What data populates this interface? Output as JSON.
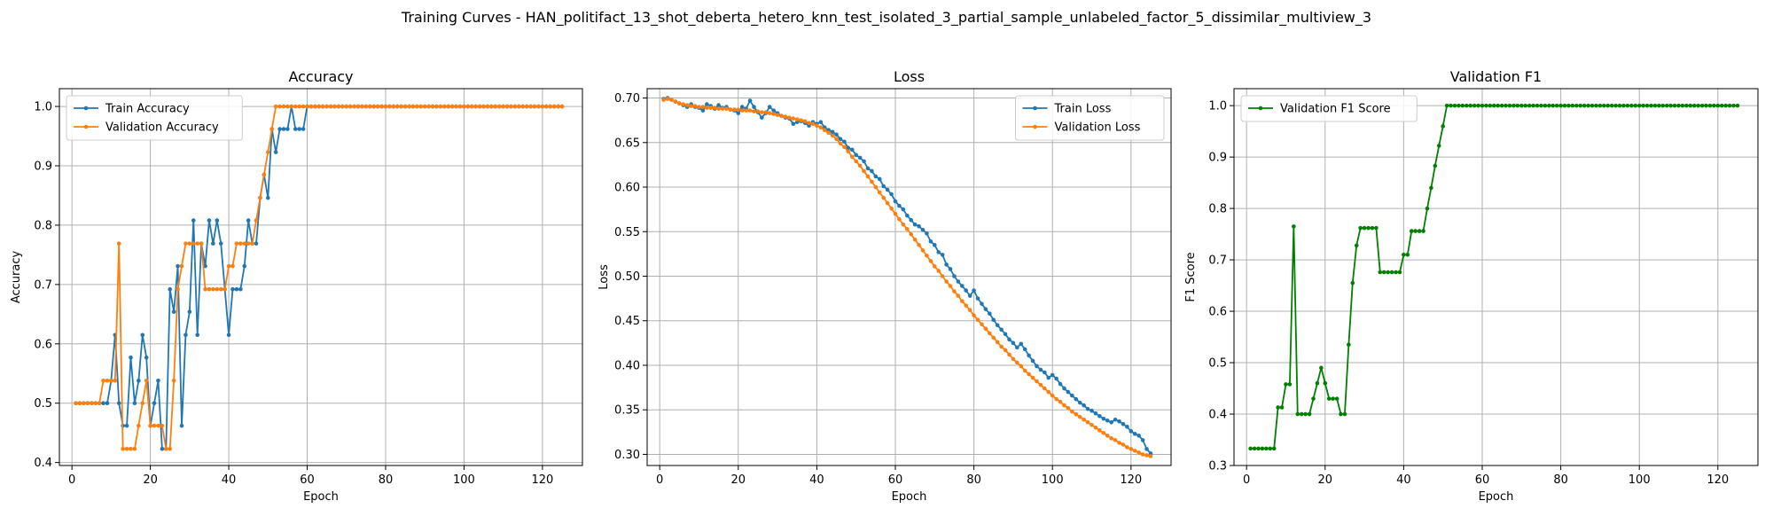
{
  "figure": {
    "title": "Training Curves - HAN_politifact_13_shot_deberta_hetero_knn_test_isolated_3_partial_sample_unlabeled_factor_5_dissimilar_multiview_3"
  },
  "colors": {
    "blue": "#1f77b4",
    "orange": "#ff7f0e",
    "green": "#008000",
    "grid": "#b0b0b0"
  },
  "chart_data": [
    {
      "type": "line",
      "title": "Accuracy",
      "xlabel": "Epoch",
      "ylabel": "Accuracy",
      "xlim": [
        -3.2,
        130.2
      ],
      "ylim": [
        0.395,
        1.03
      ],
      "xticks": [
        0,
        20,
        40,
        60,
        80,
        100,
        120
      ],
      "yticks": [
        0.4,
        0.5,
        0.6,
        0.7,
        0.8,
        0.9,
        1.0
      ],
      "grid": true,
      "legend": "upper-left",
      "series": [
        {
          "name": "Train Accuracy",
          "color": "#1f77b4",
          "y": [
            0.5,
            0.5,
            0.5,
            0.5,
            0.5,
            0.5,
            0.5,
            0.5,
            0.5,
            0.538,
            0.615,
            0.5,
            0.462,
            0.462,
            0.577,
            0.5,
            0.538,
            0.615,
            0.577,
            0.462,
            0.5,
            0.538,
            0.423,
            0.423,
            0.692,
            0.654,
            0.731,
            0.462,
            0.615,
            0.654,
            0.808,
            0.615,
            0.769,
            0.731,
            0.808,
            0.769,
            0.808,
            0.769,
            0.692,
            0.615,
            0.692,
            0.692,
            0.692,
            0.731,
            0.808,
            0.769,
            0.769,
            0.846,
            0.885,
            0.846,
            0.962,
            0.923,
            0.962,
            0.962,
            0.962,
            1.0,
            0.962,
            0.962,
            0.962,
            1.0,
            1.0,
            1.0,
            1.0,
            1.0,
            1.0,
            1.0,
            1.0,
            1.0,
            1.0,
            1.0,
            1.0,
            1.0,
            1.0,
            1.0,
            1.0,
            1.0,
            1.0,
            1.0,
            1.0,
            1.0,
            1.0,
            1.0,
            1.0,
            1.0,
            1.0,
            1.0,
            1.0,
            1.0,
            1.0,
            1.0,
            1.0,
            1.0,
            1.0,
            1.0,
            1.0,
            1.0,
            1.0,
            1.0,
            1.0,
            1.0,
            1.0,
            1.0,
            1.0,
            1.0,
            1.0,
            1.0,
            1.0,
            1.0,
            1.0,
            1.0,
            1.0,
            1.0,
            1.0,
            1.0,
            1.0,
            1.0,
            1.0,
            1.0,
            1.0,
            1.0,
            1.0,
            1.0,
            1.0,
            1.0,
            1.0
          ]
        },
        {
          "name": "Validation Accuracy",
          "color": "#ff7f0e",
          "y": [
            0.5,
            0.5,
            0.5,
            0.5,
            0.5,
            0.5,
            0.5,
            0.538,
            0.538,
            0.538,
            0.538,
            0.769,
            0.423,
            0.423,
            0.423,
            0.423,
            0.462,
            0.5,
            0.538,
            0.462,
            0.462,
            0.462,
            0.462,
            0.423,
            0.423,
            0.538,
            0.692,
            0.731,
            0.769,
            0.769,
            0.769,
            0.769,
            0.769,
            0.692,
            0.692,
            0.692,
            0.692,
            0.692,
            0.692,
            0.731,
            0.731,
            0.769,
            0.769,
            0.769,
            0.769,
            0.769,
            0.808,
            0.846,
            0.885,
            0.923,
            0.962,
            1.0,
            1.0,
            1.0,
            1.0,
            1.0,
            1.0,
            1.0,
            1.0,
            1.0,
            1.0,
            1.0,
            1.0,
            1.0,
            1.0,
            1.0,
            1.0,
            1.0,
            1.0,
            1.0,
            1.0,
            1.0,
            1.0,
            1.0,
            1.0,
            1.0,
            1.0,
            1.0,
            1.0,
            1.0,
            1.0,
            1.0,
            1.0,
            1.0,
            1.0,
            1.0,
            1.0,
            1.0,
            1.0,
            1.0,
            1.0,
            1.0,
            1.0,
            1.0,
            1.0,
            1.0,
            1.0,
            1.0,
            1.0,
            1.0,
            1.0,
            1.0,
            1.0,
            1.0,
            1.0,
            1.0,
            1.0,
            1.0,
            1.0,
            1.0,
            1.0,
            1.0,
            1.0,
            1.0,
            1.0,
            1.0,
            1.0,
            1.0,
            1.0,
            1.0,
            1.0,
            1.0,
            1.0,
            1.0,
            1.0
          ]
        }
      ]
    },
    {
      "type": "line",
      "title": "Loss",
      "xlabel": "Epoch",
      "ylabel": "Loss",
      "xlim": [
        -3.2,
        130.2
      ],
      "ylim": [
        0.2875,
        0.7105
      ],
      "xticks": [
        0,
        20,
        40,
        60,
        80,
        100,
        120
      ],
      "yticks": [
        0.3,
        0.35,
        0.4,
        0.45,
        0.5,
        0.55,
        0.6,
        0.65,
        0.7
      ],
      "ytick_labels": [
        "0.30",
        "0.35",
        "0.40",
        "0.45",
        "0.50",
        "0.55",
        "0.60",
        "0.65",
        "0.70"
      ],
      "grid": true,
      "legend": "upper-right",
      "series": [
        {
          "name": "Train Loss",
          "color": "#1f77b4",
          "y": [
            0.699,
            0.7,
            0.698,
            0.696,
            0.694,
            0.692,
            0.69,
            0.693,
            0.69,
            0.689,
            0.686,
            0.693,
            0.691,
            0.688,
            0.692,
            0.689,
            0.69,
            0.687,
            0.686,
            0.683,
            0.69,
            0.688,
            0.697,
            0.69,
            0.684,
            0.678,
            0.683,
            0.69,
            0.686,
            0.683,
            0.68,
            0.678,
            0.677,
            0.671,
            0.673,
            0.674,
            0.672,
            0.669,
            0.673,
            0.671,
            0.673,
            0.667,
            0.664,
            0.662,
            0.659,
            0.654,
            0.651,
            0.644,
            0.642,
            0.636,
            0.633,
            0.629,
            0.621,
            0.618,
            0.612,
            0.609,
            0.601,
            0.597,
            0.592,
            0.584,
            0.579,
            0.575,
            0.568,
            0.563,
            0.558,
            0.556,
            0.552,
            0.548,
            0.539,
            0.535,
            0.527,
            0.524,
            0.513,
            0.508,
            0.5,
            0.494,
            0.489,
            0.484,
            0.478,
            0.484,
            0.475,
            0.469,
            0.463,
            0.458,
            0.451,
            0.445,
            0.44,
            0.435,
            0.429,
            0.425,
            0.42,
            0.424,
            0.418,
            0.411,
            0.405,
            0.399,
            0.395,
            0.392,
            0.386,
            0.389,
            0.385,
            0.379,
            0.374,
            0.37,
            0.366,
            0.362,
            0.358,
            0.355,
            0.351,
            0.349,
            0.346,
            0.343,
            0.34,
            0.338,
            0.336,
            0.339,
            0.337,
            0.334,
            0.331,
            0.326,
            0.323,
            0.321,
            0.316,
            0.306,
            0.301
          ]
        },
        {
          "name": "Validation Loss",
          "color": "#ff7f0e",
          "y": [
            0.698,
            0.699,
            0.698,
            0.696,
            0.694,
            0.693,
            0.692,
            0.691,
            0.691,
            0.69,
            0.69,
            0.689,
            0.689,
            0.689,
            0.688,
            0.688,
            0.688,
            0.687,
            0.687,
            0.687,
            0.686,
            0.686,
            0.686,
            0.685,
            0.685,
            0.684,
            0.684,
            0.683,
            0.682,
            0.681,
            0.68,
            0.679,
            0.678,
            0.677,
            0.676,
            0.675,
            0.674,
            0.672,
            0.671,
            0.669,
            0.667,
            0.664,
            0.661,
            0.658,
            0.654,
            0.649,
            0.645,
            0.64,
            0.634,
            0.629,
            0.624,
            0.618,
            0.612,
            0.606,
            0.6,
            0.594,
            0.588,
            0.582,
            0.576,
            0.57,
            0.564,
            0.558,
            0.553,
            0.547,
            0.541,
            0.535,
            0.529,
            0.523,
            0.517,
            0.511,
            0.506,
            0.5,
            0.494,
            0.489,
            0.483,
            0.478,
            0.472,
            0.467,
            0.462,
            0.456,
            0.451,
            0.446,
            0.441,
            0.436,
            0.431,
            0.426,
            0.421,
            0.417,
            0.412,
            0.407,
            0.403,
            0.399,
            0.394,
            0.39,
            0.386,
            0.382,
            0.378,
            0.374,
            0.37,
            0.366,
            0.362,
            0.359,
            0.355,
            0.352,
            0.348,
            0.345,
            0.342,
            0.339,
            0.336,
            0.333,
            0.33,
            0.327,
            0.324,
            0.321,
            0.318,
            0.316,
            0.313,
            0.311,
            0.308,
            0.306,
            0.304,
            0.302,
            0.3,
            0.299,
            0.298
          ]
        }
      ]
    },
    {
      "type": "line",
      "title": "Validation F1",
      "xlabel": "Epoch",
      "ylabel": "F1 Score",
      "xlim": [
        -3.2,
        130.2
      ],
      "ylim": [
        0.3,
        1.033
      ],
      "xticks": [
        0,
        20,
        40,
        60,
        80,
        100,
        120
      ],
      "yticks": [
        0.3,
        0.4,
        0.5,
        0.6,
        0.7,
        0.8,
        0.9,
        1.0
      ],
      "grid": true,
      "legend": "upper-left",
      "series": [
        {
          "name": "Validation F1 Score",
          "color": "#008000",
          "y": [
            0.333,
            0.333,
            0.333,
            0.333,
            0.333,
            0.333,
            0.333,
            0.413,
            0.413,
            0.458,
            0.458,
            0.765,
            0.4,
            0.4,
            0.4,
            0.4,
            0.43,
            0.46,
            0.49,
            0.46,
            0.43,
            0.43,
            0.43,
            0.4,
            0.4,
            0.535,
            0.655,
            0.728,
            0.762,
            0.762,
            0.762,
            0.762,
            0.762,
            0.676,
            0.676,
            0.676,
            0.676,
            0.676,
            0.676,
            0.71,
            0.71,
            0.756,
            0.756,
            0.756,
            0.756,
            0.8,
            0.84,
            0.883,
            0.922,
            0.96,
            1.0,
            1.0,
            1.0,
            1.0,
            1.0,
            1.0,
            1.0,
            1.0,
            1.0,
            1.0,
            1.0,
            1.0,
            1.0,
            1.0,
            1.0,
            1.0,
            1.0,
            1.0,
            1.0,
            1.0,
            1.0,
            1.0,
            1.0,
            1.0,
            1.0,
            1.0,
            1.0,
            1.0,
            1.0,
            1.0,
            1.0,
            1.0,
            1.0,
            1.0,
            1.0,
            1.0,
            1.0,
            1.0,
            1.0,
            1.0,
            1.0,
            1.0,
            1.0,
            1.0,
            1.0,
            1.0,
            1.0,
            1.0,
            1.0,
            1.0,
            1.0,
            1.0,
            1.0,
            1.0,
            1.0,
            1.0,
            1.0,
            1.0,
            1.0,
            1.0,
            1.0,
            1.0,
            1.0,
            1.0,
            1.0,
            1.0,
            1.0,
            1.0,
            1.0,
            1.0,
            1.0,
            1.0,
            1.0,
            1.0,
            1.0
          ]
        }
      ]
    }
  ]
}
